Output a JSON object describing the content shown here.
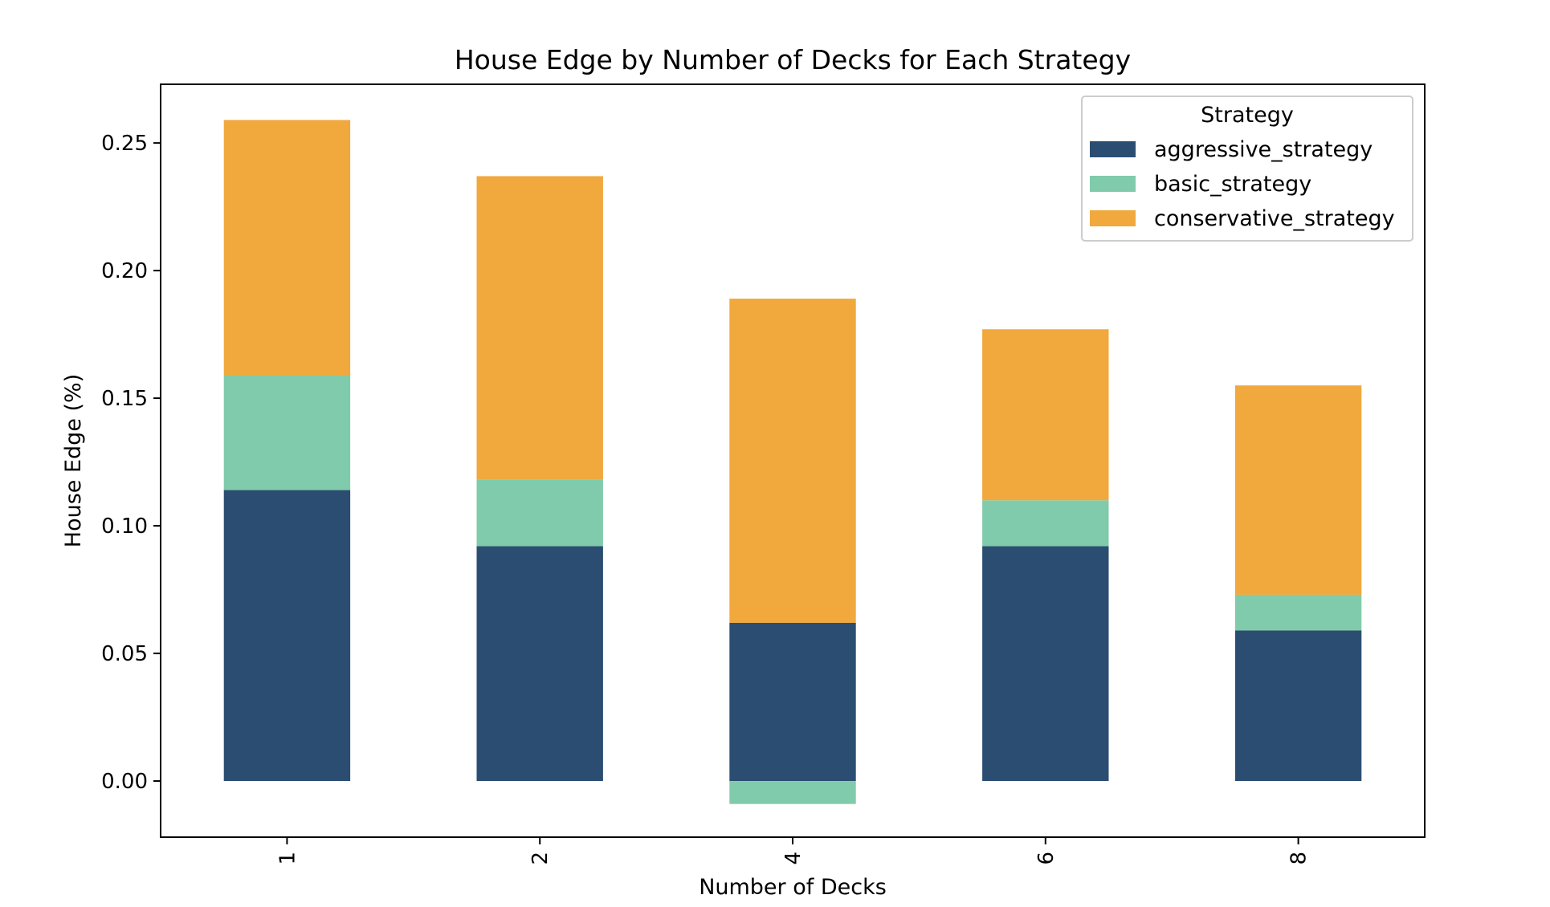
{
  "chart_data": {
    "type": "bar",
    "stacked": true,
    "title": "House Edge by Number of Decks for Each Strategy",
    "xlabel": "Number of Decks",
    "ylabel": "House Edge (%)",
    "categories": [
      "1",
      "2",
      "4",
      "6",
      "8"
    ],
    "series": [
      {
        "name": "aggressive_strategy",
        "color": "#2c4d72",
        "values": [
          0.114,
          0.092,
          0.062,
          0.092,
          0.059
        ]
      },
      {
        "name": "basic_strategy",
        "color": "#80cbab",
        "values": [
          0.045,
          0.026,
          -0.009,
          0.018,
          0.014
        ]
      },
      {
        "name": "conservative_strategy",
        "color": "#f1a83c",
        "values": [
          0.1,
          0.119,
          0.127,
          0.067,
          0.082
        ]
      }
    ],
    "ylim": [
      -0.022,
      0.273
    ],
    "yticks": [
      0.0,
      0.05,
      0.1,
      0.15,
      0.2,
      0.25
    ],
    "ytick_labels": [
      "0.00",
      "0.05",
      "0.10",
      "0.15",
      "0.20",
      "0.25"
    ],
    "grid": false,
    "legend": {
      "title": "Strategy",
      "placement": "top-right"
    }
  }
}
